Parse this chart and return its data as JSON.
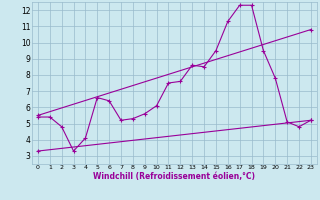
{
  "xlabel": "Windchill (Refroidissement éolien,°C)",
  "xlim": [
    -0.5,
    23.5
  ],
  "ylim": [
    2.5,
    12.5
  ],
  "yticks": [
    3,
    4,
    5,
    6,
    7,
    8,
    9,
    10,
    11,
    12
  ],
  "xticks": [
    0,
    1,
    2,
    3,
    4,
    5,
    6,
    7,
    8,
    9,
    10,
    11,
    12,
    13,
    14,
    15,
    16,
    17,
    18,
    19,
    20,
    21,
    22,
    23
  ],
  "bg_color": "#cce8ef",
  "line_color": "#990099",
  "grid_color": "#99bbcc",
  "line1_x": [
    0,
    1,
    2,
    3,
    4,
    5,
    6,
    7,
    8,
    9,
    10,
    11,
    12,
    13,
    14,
    15,
    16,
    17,
    18,
    19,
    20,
    21,
    22,
    23
  ],
  "line1_y": [
    5.4,
    5.4,
    4.8,
    3.3,
    4.1,
    6.6,
    6.4,
    5.2,
    5.3,
    5.6,
    6.1,
    7.5,
    7.6,
    8.6,
    8.5,
    9.5,
    11.3,
    12.3,
    12.3,
    9.5,
    7.8,
    5.1,
    4.8,
    5.2
  ],
  "line2_x": [
    0,
    23
  ],
  "line2_y": [
    5.5,
    10.8
  ],
  "line3_x": [
    0,
    23
  ],
  "line3_y": [
    3.3,
    5.2
  ]
}
